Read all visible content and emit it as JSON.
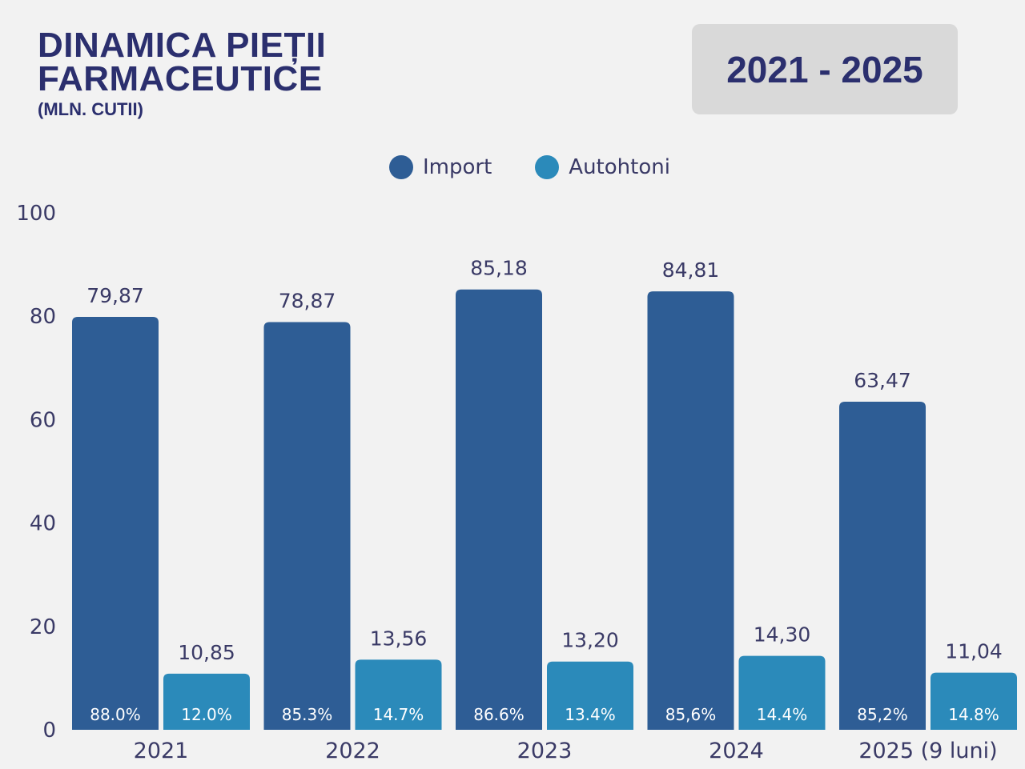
{
  "header": {
    "title_line1": "DINAMICA PIEȚII",
    "title_line2": "FARMACEUTICE",
    "subtitle": "(MLN. CUTII)",
    "range": "2021 - 2025"
  },
  "colors": {
    "background": "#f2f2f2",
    "title": "#2b2f6e",
    "range_box": "#d9d9d9",
    "import": "#2e5d95",
    "autohtoni": "#2b8aba",
    "text": "#3a3a66"
  },
  "chart_data": {
    "type": "bar",
    "title": "DINAMICA PIEȚII FARMACEUTICE (MLN. CUTII)",
    "subtitle": "2021 - 2025",
    "xlabel": "",
    "ylabel": "",
    "ylim": [
      0,
      100
    ],
    "yticks": [
      0,
      20,
      40,
      60,
      80,
      100
    ],
    "grid": false,
    "legend_position": "top-center",
    "categories": [
      "2021",
      "2022",
      "2023",
      "2024",
      "2025 (9 luni)"
    ],
    "series": [
      {
        "name": "Import",
        "color": "#2e5d95",
        "values": [
          79.87,
          78.87,
          85.18,
          84.81,
          63.47
        ],
        "value_labels": [
          "79,87",
          "78,87",
          "85,18",
          "84,81",
          "63,47"
        ],
        "share_labels": [
          "88.0%",
          "85.3%",
          "86.6%",
          "85,6%",
          "85,2%"
        ]
      },
      {
        "name": "Autohtoni",
        "color": "#2b8aba",
        "values": [
          10.85,
          13.56,
          13.2,
          14.3,
          11.04
        ],
        "value_labels": [
          "10,85",
          "13,56",
          "13,20",
          "14,30",
          "11,04"
        ],
        "share_labels": [
          "12.0%",
          "14.7%",
          "13.4%",
          "14.4%",
          "14.8%"
        ]
      }
    ]
  }
}
